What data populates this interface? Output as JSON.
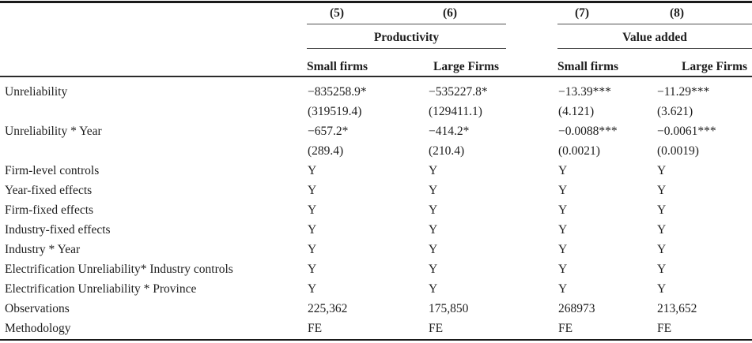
{
  "table": {
    "column_numbers": [
      "(5)",
      "(6)",
      "(7)",
      "(8)"
    ],
    "groups": [
      {
        "label": "Productivity",
        "columns": [
          "(5)",
          "(6)"
        ]
      },
      {
        "label": "Value added",
        "columns": [
          "(7)",
          "(8)"
        ]
      }
    ],
    "subheaders": [
      "Small firms",
      "Large Firms",
      "Small firms",
      "Large Firms"
    ],
    "rows": [
      {
        "label": "Unreliability",
        "c5": "−835258.9*",
        "c6": "−535227.8*",
        "c7": "−13.39***",
        "c8": "−11.29***"
      },
      {
        "label": "",
        "c5": "(319519.4)",
        "c6": "(129411.1)",
        "c7": "(4.121)",
        "c8": "(3.621)"
      },
      {
        "label": "Unreliability * Year",
        "c5": "−657.2*",
        "c6": "−414.2*",
        "c7": "−0.0088***",
        "c8": "−0.0061***"
      },
      {
        "label": "",
        "c5": "(289.4)",
        "c6": "(210.4)",
        "c7": "(0.0021)",
        "c8": "(0.0019)"
      },
      {
        "label": "Firm-level controls",
        "c5": "Y",
        "c6": "Y",
        "c7": "Y",
        "c8": "Y"
      },
      {
        "label": "Year-fixed effects",
        "c5": "Y",
        "c6": "Y",
        "c7": "Y",
        "c8": "Y"
      },
      {
        "label": "Firm-fixed effects",
        "c5": "Y",
        "c6": "Y",
        "c7": "Y",
        "c8": "Y"
      },
      {
        "label": "Industry-fixed effects",
        "c5": "Y",
        "c6": "Y",
        "c7": "Y",
        "c8": "Y"
      },
      {
        "label": "Industry * Year",
        "c5": "Y",
        "c6": "Y",
        "c7": "Y",
        "c8": "Y"
      },
      {
        "label": "Electrification Unreliability* Industry controls",
        "c5": "Y",
        "c6": "Y",
        "c7": "Y",
        "c8": "Y"
      },
      {
        "label": "Electrification Unreliability * Province",
        "c5": "Y",
        "c6": "Y",
        "c7": "Y",
        "c8": "Y"
      },
      {
        "label": "Observations",
        "c5": "225,362",
        "c6": "175,850",
        "c7": "268973",
        "c8": "213,652"
      },
      {
        "label": "Methodology",
        "c5": "FE",
        "c6": "FE",
        "c7": "FE",
        "c8": "FE"
      }
    ],
    "colors": {
      "text": "#1d1d1d",
      "rule_heavy": "#1a1a1a",
      "rule_light": "#4f4f4f",
      "background": "#ffffff"
    }
  }
}
